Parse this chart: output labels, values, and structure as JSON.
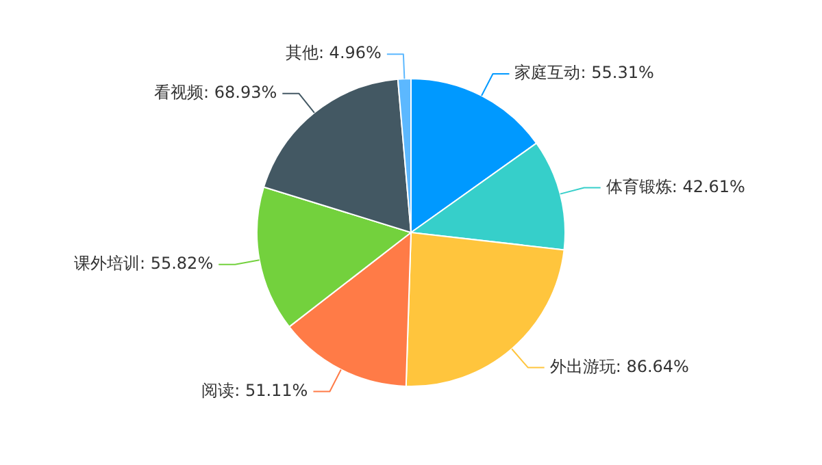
{
  "chart_data": {
    "type": "pie",
    "categories": [
      "家庭互动",
      "体育锻炼",
      "外出游玩",
      "阅读",
      "课外培训",
      "看视频",
      "其他"
    ],
    "values": [
      55.31,
      42.61,
      86.64,
      51.11,
      55.82,
      68.93,
      4.96
    ],
    "value_labels": [
      "55.31%",
      "42.61%",
      "86.64%",
      "51.11%",
      "55.82%",
      "68.93%",
      "4.96%"
    ],
    "colors": [
      "#0099ff",
      "#36cfca",
      "#ffc53d",
      "#ff7b47",
      "#73d13d",
      "#435863",
      "#5cb8ff"
    ],
    "legend": false
  }
}
